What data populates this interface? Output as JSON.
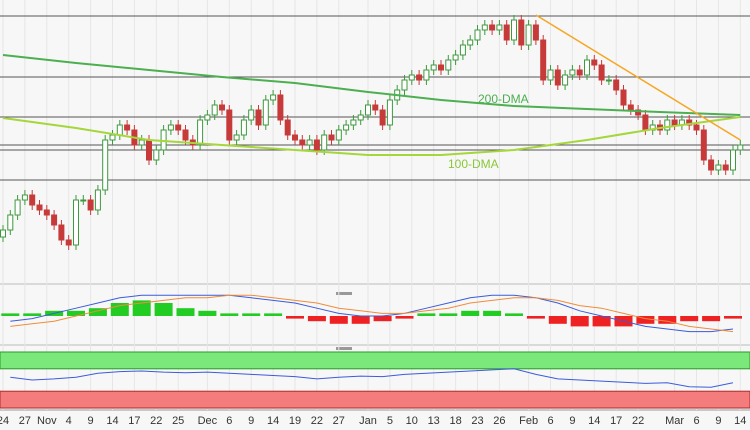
{
  "chart_data": {
    "type": "candlestick",
    "categories": [
      "24",
      null,
      null,
      "27",
      null,
      null,
      "Nov",
      null,
      null,
      "4",
      null,
      null,
      "9",
      null,
      null,
      "14",
      null,
      null,
      "17",
      null,
      null,
      "22",
      null,
      null,
      "25",
      null,
      null,
      null,
      "Dec",
      null,
      null,
      "6",
      null,
      null,
      "9",
      null,
      null,
      "14",
      null,
      null,
      "19",
      null,
      null,
      "22",
      null,
      null,
      "27",
      null,
      null,
      null,
      "Jan",
      null,
      null,
      "5",
      null,
      null,
      "10",
      null,
      null,
      "13",
      null,
      null,
      "18",
      null,
      null,
      "23",
      null,
      null,
      "26",
      null,
      null,
      null,
      "Feb",
      null,
      null,
      "6",
      null,
      null,
      "9",
      null,
      null,
      "14",
      null,
      null,
      "17",
      null,
      null,
      "22",
      null,
      null,
      null,
      null,
      "Mar",
      null,
      null,
      "6",
      null,
      null,
      "9",
      null,
      null,
      "14"
    ],
    "open": [
      45,
      52,
      67,
      82,
      87,
      77,
      72,
      67,
      57,
      42,
      37,
      82,
      82,
      72,
      92,
      142,
      147,
      157,
      152,
      137,
      142,
      122,
      132,
      152,
      157,
      152,
      142,
      137,
      162,
      167,
      177,
      172,
      142,
      147,
      162,
      172,
      157,
      182,
      187,
      162,
      147,
      142,
      137,
      142,
      132,
      147,
      142,
      152,
      157,
      162,
      167,
      177,
      172,
      157,
      182,
      192,
      202,
      207,
      202,
      212,
      217,
      212,
      222,
      227,
      237,
      242,
      252,
      257,
      252,
      257,
      242,
      262,
      237,
      257,
      242,
      202,
      212,
      197,
      207,
      212,
      207,
      222,
      217,
      202,
      202,
      192,
      177,
      172,
      167,
      152,
      157,
      152,
      162,
      157,
      162,
      157,
      152,
      122,
      112,
      117,
      112,
      132
    ],
    "close": [
      52,
      67,
      82,
      87,
      77,
      72,
      67,
      57,
      42,
      37,
      82,
      82,
      72,
      92,
      142,
      147,
      157,
      152,
      137,
      142,
      122,
      132,
      152,
      157,
      152,
      142,
      137,
      162,
      167,
      177,
      172,
      142,
      147,
      162,
      172,
      157,
      182,
      187,
      162,
      147,
      142,
      137,
      142,
      132,
      147,
      142,
      152,
      157,
      162,
      167,
      177,
      172,
      157,
      182,
      192,
      202,
      207,
      202,
      212,
      217,
      212,
      222,
      227,
      237,
      242,
      252,
      257,
      252,
      257,
      242,
      262,
      237,
      257,
      242,
      202,
      212,
      197,
      207,
      212,
      207,
      222,
      217,
      202,
      202,
      192,
      177,
      172,
      167,
      152,
      157,
      152,
      162,
      157,
      162,
      157,
      152,
      122,
      112,
      117,
      112,
      132,
      137
    ],
    "high": [
      57,
      72,
      87,
      92,
      92,
      82,
      77,
      72,
      62,
      47,
      87,
      87,
      87,
      97,
      147,
      152,
      162,
      162,
      157,
      147,
      147,
      137,
      157,
      162,
      162,
      157,
      147,
      167,
      172,
      182,
      182,
      177,
      152,
      167,
      177,
      177,
      187,
      192,
      192,
      167,
      152,
      147,
      147,
      147,
      152,
      152,
      157,
      162,
      167,
      172,
      182,
      182,
      177,
      187,
      197,
      207,
      212,
      212,
      217,
      222,
      222,
      227,
      232,
      242,
      247,
      257,
      262,
      262,
      262,
      262,
      267,
      267,
      262,
      262,
      247,
      217,
      217,
      212,
      217,
      217,
      227,
      227,
      222,
      207,
      207,
      197,
      182,
      177,
      172,
      162,
      162,
      167,
      167,
      167,
      167,
      162,
      157,
      127,
      122,
      122,
      137,
      142
    ],
    "low": [
      40,
      47,
      62,
      77,
      72,
      67,
      62,
      52,
      37,
      32,
      32,
      77,
      67,
      67,
      87,
      137,
      142,
      147,
      132,
      132,
      117,
      117,
      127,
      147,
      147,
      137,
      132,
      132,
      157,
      162,
      167,
      137,
      137,
      142,
      157,
      152,
      152,
      177,
      157,
      142,
      137,
      132,
      132,
      127,
      127,
      137,
      137,
      147,
      152,
      157,
      162,
      167,
      152,
      152,
      177,
      187,
      197,
      197,
      197,
      207,
      207,
      207,
      217,
      222,
      232,
      237,
      247,
      247,
      247,
      237,
      237,
      232,
      232,
      237,
      197,
      197,
      192,
      192,
      202,
      202,
      202,
      212,
      197,
      197,
      187,
      172,
      167,
      162,
      147,
      147,
      147,
      147,
      152,
      152,
      152,
      147,
      117,
      107,
      107,
      107,
      107,
      127
    ],
    "up_color": "#3d9a3d",
    "down_color": "#c73a3a",
    "ylim": [
      0,
      272
    ],
    "levels": [
      266,
      205,
      165,
      137,
      132,
      102
    ],
    "series": [
      {
        "name": "200-DMA",
        "color": "#4caf50",
        "x": [
          0,
          10,
          20,
          30,
          40,
          50,
          60,
          70,
          80,
          90,
          101
        ],
        "values": [
          227,
          219,
          212,
          205,
          199,
          190,
          182,
          176,
          173,
          170,
          167
        ]
      },
      {
        "name": "100-DMA",
        "color": "#a5d63a",
        "x": [
          0,
          10,
          20,
          30,
          40,
          50,
          60,
          70,
          80,
          90,
          101
        ],
        "values": [
          164,
          154,
          142,
          137,
          132,
          127,
          127,
          132,
          142,
          154,
          165
        ]
      }
    ],
    "trendline": {
      "color": "#f5a623",
      "x": [
        73,
        101
      ],
      "values": [
        267,
        142
      ]
    },
    "macd": {
      "ylim": [
        -10,
        10
      ],
      "histogram": [
        1,
        1,
        2,
        2,
        3,
        5,
        6,
        5,
        3,
        2,
        1,
        1,
        1,
        -1,
        -2,
        -3,
        -3,
        -2,
        -1,
        1,
        1,
        2,
        2,
        1,
        -1,
        -3,
        -4,
        -4,
        -4,
        -3,
        -3,
        -2,
        -2,
        -1
      ],
      "macd": [
        -2,
        -1,
        1,
        3,
        5,
        7,
        8,
        8,
        8,
        8,
        8,
        7,
        6,
        5,
        3,
        1,
        0,
        0,
        1,
        3,
        5,
        7,
        8,
        8,
        7,
        5,
        2,
        0,
        -2,
        -4,
        -5,
        -6,
        -6,
        -5
      ],
      "signal": [
        -4,
        -3,
        -2,
        0,
        2,
        4,
        5,
        6,
        7,
        7,
        8,
        8,
        7,
        6,
        5,
        3,
        2,
        1,
        1,
        2,
        3,
        5,
        6,
        7,
        7,
        6,
        4,
        3,
        1,
        -1,
        -2,
        -4,
        -5,
        -6
      ]
    },
    "rsi": {
      "ylim": [
        0,
        100
      ],
      "overbought": 70,
      "oversold": 30,
      "values": [
        55,
        50,
        52,
        55,
        62,
        65,
        66,
        64,
        63,
        64,
        62,
        60,
        58,
        56,
        52,
        55,
        57,
        56,
        60,
        62,
        64,
        66,
        68,
        70,
        60,
        52,
        50,
        48,
        46,
        44,
        45,
        38,
        37,
        45
      ]
    }
  }
}
